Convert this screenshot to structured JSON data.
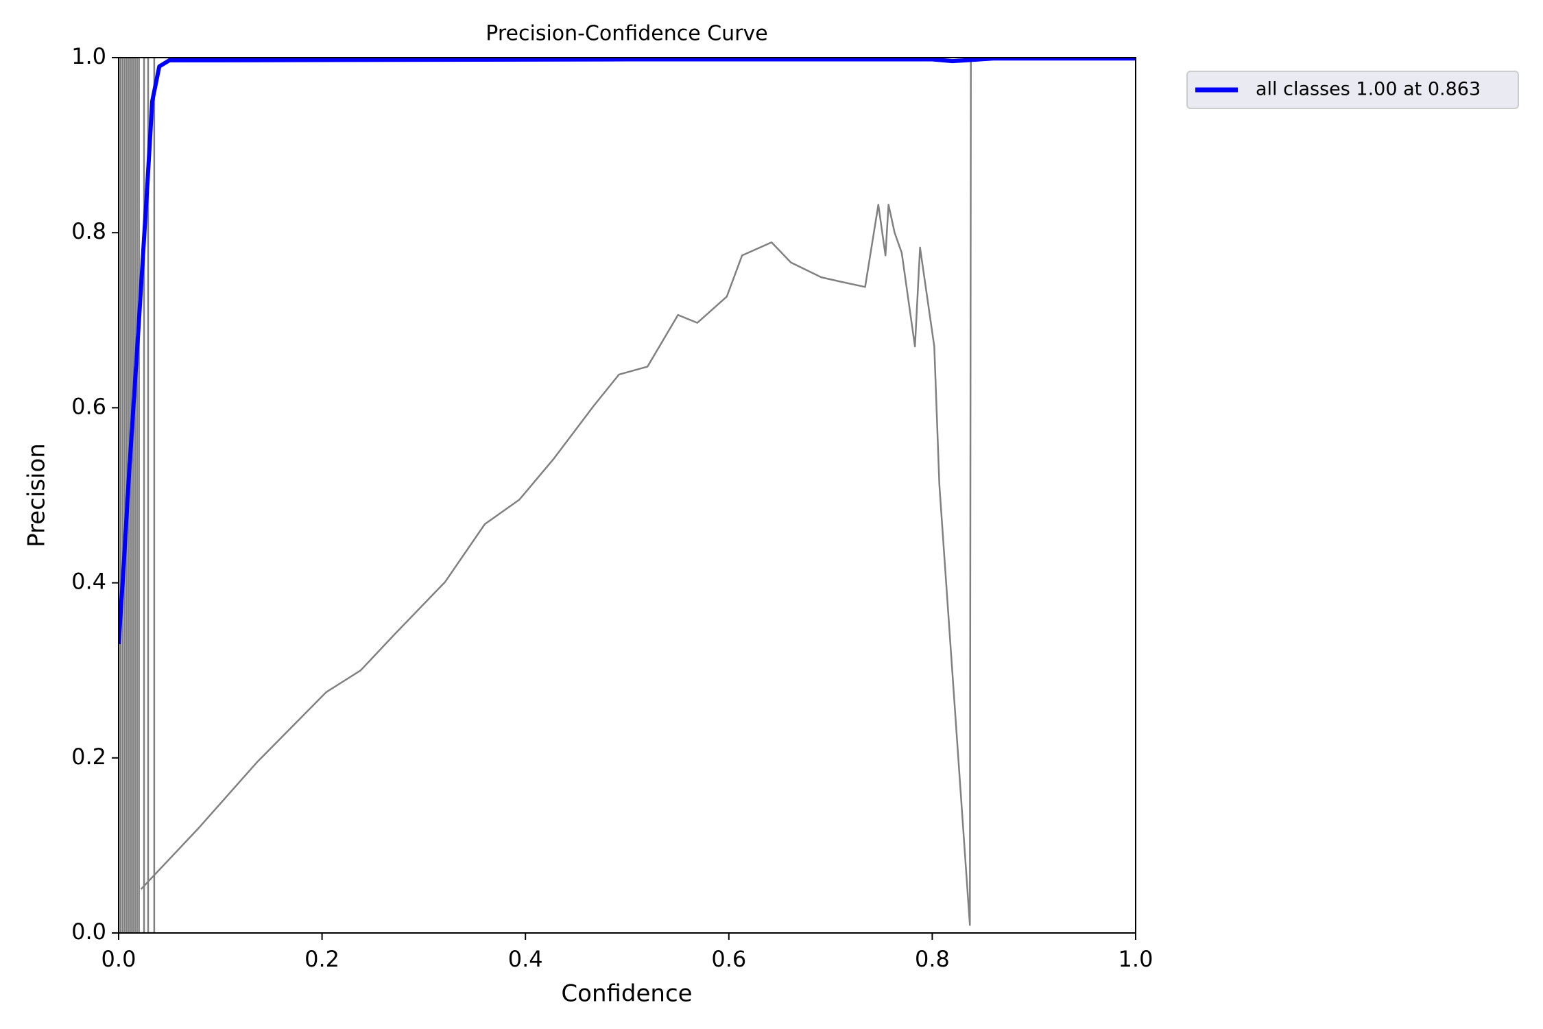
{
  "chart_data": {
    "type": "line",
    "title": "Precision-Confidence Curve",
    "x_label": "Confidence",
    "y_label": "Precision",
    "xlim": [
      0.0,
      1.0
    ],
    "ylim": [
      0.0,
      1.0
    ],
    "xticks": [
      {
        "value": 0,
        "label": "0.0"
      },
      0.2,
      0.4,
      0.6,
      0.8,
      {
        "value": 1,
        "label": "1.0"
      }
    ],
    "yticks": [
      {
        "value": 0,
        "label": "0.0"
      },
      0.2,
      0.4,
      0.6,
      0.8,
      {
        "value": 1,
        "label": "1.0"
      }
    ],
    "legend": "outside-upper-right",
    "series": [
      {
        "color": "#808080",
        "x": [
          0.0,
          0.0,
          0.002,
          0.002,
          0.004,
          0.004,
          0.006,
          0.006,
          0.008,
          0.008,
          0.01,
          0.01,
          0.012,
          0.012,
          0.014,
          0.014,
          0.016,
          0.016,
          0.018,
          0.018,
          0.02,
          0.02,
          0.025,
          0.025,
          0.029,
          0.029,
          0.035,
          0.035
        ],
        "values": [
          1.0,
          0.0,
          0.0,
          1.0,
          1.0,
          0.0,
          0.0,
          1.0,
          1.0,
          0.0,
          0.0,
          1.0,
          1.0,
          0.0,
          0.0,
          1.0,
          1.0,
          0.0,
          0.0,
          1.0,
          1.0,
          0.0,
          0.0,
          1.0,
          1.0,
          0.0,
          0.0,
          1.0
        ]
      },
      {
        "color": "#808080",
        "x": [
          0.022,
          0.078,
          0.136,
          0.204,
          0.238,
          0.272,
          0.321,
          0.36,
          0.394,
          0.428,
          0.467,
          0.492,
          0.52,
          0.55,
          0.569,
          0.598,
          0.613,
          0.642,
          0.661,
          0.691,
          0.71,
          0.734,
          0.747,
          0.754,
          0.757,
          0.763,
          0.77,
          0.783,
          0.788,
          0.802,
          0.807,
          0.837,
          0.838,
          0.866,
          1.0
        ],
        "values": [
          0.05,
          0.119,
          0.195,
          0.275,
          0.3,
          0.342,
          0.401,
          0.467,
          0.495,
          0.542,
          0.602,
          0.638,
          0.647,
          0.706,
          0.697,
          0.727,
          0.774,
          0.789,
          0.766,
          0.749,
          0.744,
          0.738,
          0.832,
          0.774,
          0.832,
          0.8,
          0.777,
          0.67,
          0.783,
          0.67,
          0.512,
          0.009,
          0.998,
          1.0,
          1.0
        ]
      },
      {
        "name": "all classes 1.00 at 0.863",
        "color": "#0000ff",
        "x": [
          0.0,
          0.005,
          0.01,
          0.02,
          0.028,
          0.033,
          0.04,
          0.05,
          0.1,
          0.5,
          0.8,
          0.82,
          0.86,
          1.0
        ],
        "values": [
          0.33,
          0.42,
          0.52,
          0.7,
          0.85,
          0.95,
          0.99,
          0.997,
          0.997,
          0.998,
          0.998,
          0.996,
          0.999,
          0.999
        ]
      }
    ]
  }
}
